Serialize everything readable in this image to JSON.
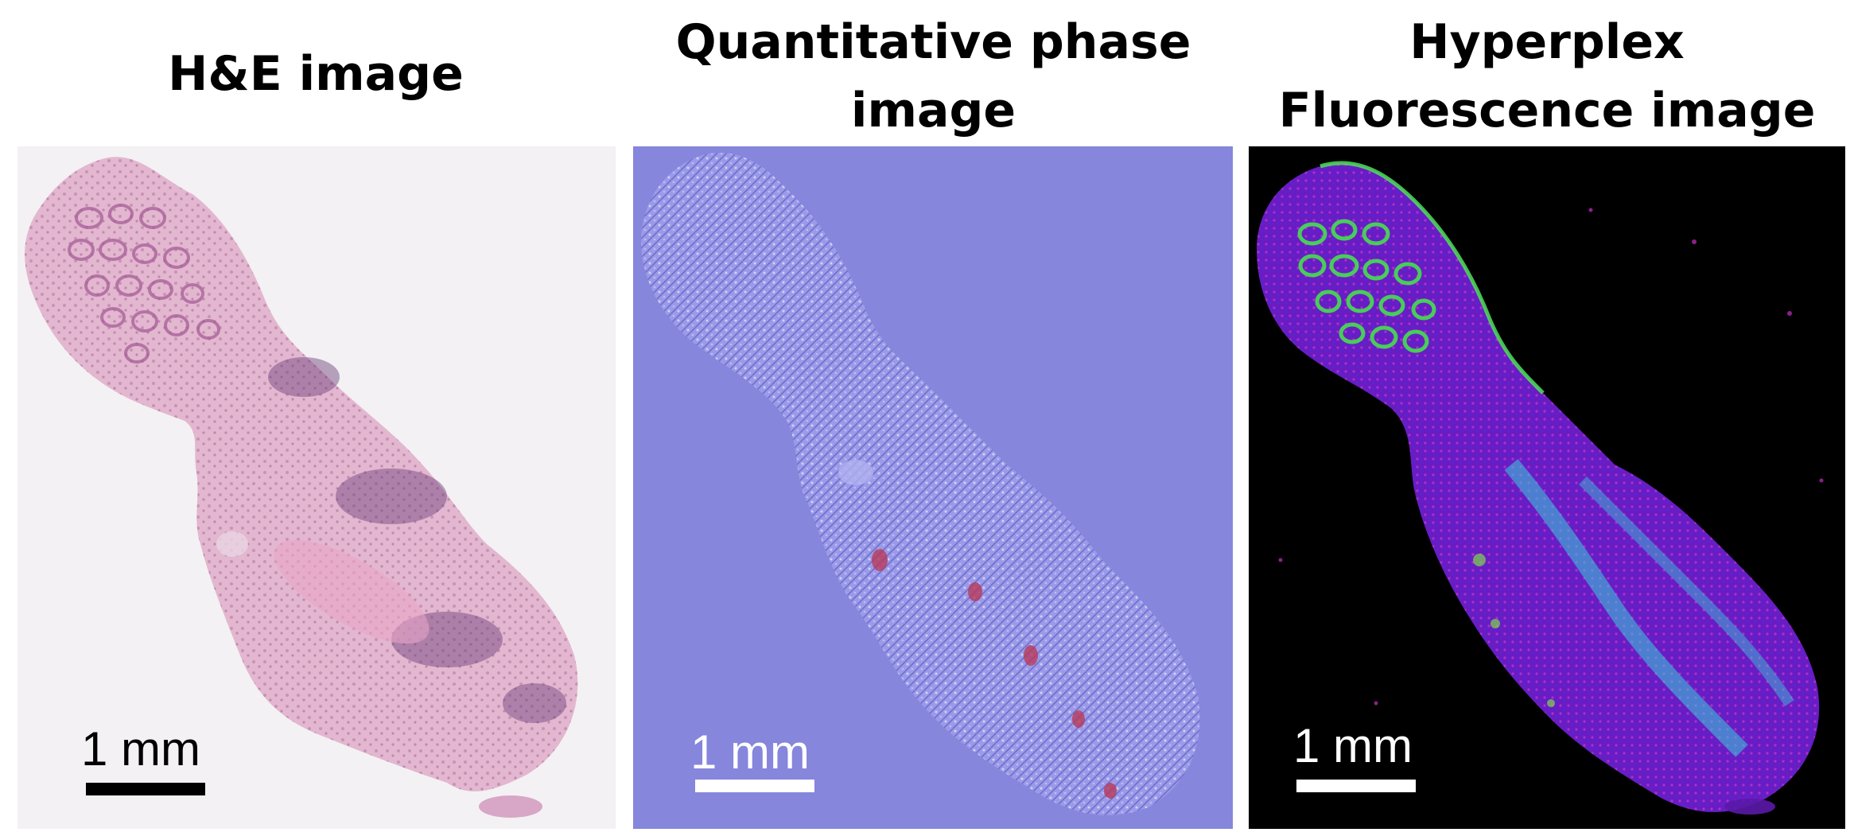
{
  "panels": [
    {
      "id": "he",
      "title_lines": [
        "H&E image"
      ],
      "scale_label": "1 mm",
      "background": "#f3f1f3",
      "tissue_color": "#e3b7cf",
      "text_color": "#000000"
    },
    {
      "id": "qpi",
      "title_lines": [
        "Quantitative phase",
        "image"
      ],
      "scale_label": "1 mm",
      "background": "#8686dc",
      "tissue_color": "#9a9ae8",
      "text_color": "#ffffff"
    },
    {
      "id": "fluor",
      "title_lines": [
        "Hyperplex",
        "Fluorescence image"
      ],
      "scale_label": "1 mm",
      "background": "#000000",
      "tissue_color": "#6a1cc4",
      "text_color": "#ffffff"
    }
  ]
}
